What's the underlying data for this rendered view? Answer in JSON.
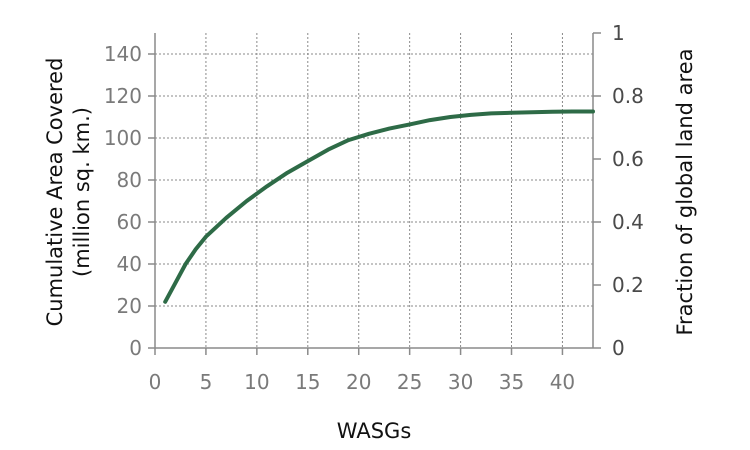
{
  "chart_data": {
    "type": "line",
    "xlabel": "WASGs",
    "ylabel_line1": "Cumulative Area Covered",
    "ylabel_line2": "(million sq. km.)",
    "y2label": "Fraction of global land area",
    "xlim": [
      0,
      43
    ],
    "ylim": [
      0,
      150
    ],
    "y2lim": [
      0,
      1
    ],
    "x_ticks": [
      0,
      5,
      10,
      15,
      20,
      25,
      30,
      35,
      40
    ],
    "y_ticks": [
      0,
      20,
      40,
      60,
      80,
      100,
      120,
      140
    ],
    "y2_ticks": [
      0,
      0.2,
      0.4,
      0.6,
      0.8,
      1
    ],
    "y2_tick_labels": [
      "0",
      "0.2",
      "0.4",
      "0.6",
      "0.8",
      "1"
    ],
    "grid": true,
    "line_color": "#2e6b47",
    "series": [
      {
        "x": [
          1,
          2,
          3,
          4,
          5,
          7,
          9,
          11,
          13,
          15,
          17,
          19,
          21,
          23,
          25,
          27,
          29,
          31,
          33,
          35,
          37,
          39,
          41,
          43
        ],
        "values": [
          22,
          31,
          40,
          47,
          53,
          62,
          70,
          77,
          83.5,
          89,
          94.5,
          99,
          102,
          104.5,
          106.5,
          108.5,
          110,
          111,
          111.7,
          112,
          112.3,
          112.5,
          112.6,
          112.6
        ]
      }
    ]
  }
}
